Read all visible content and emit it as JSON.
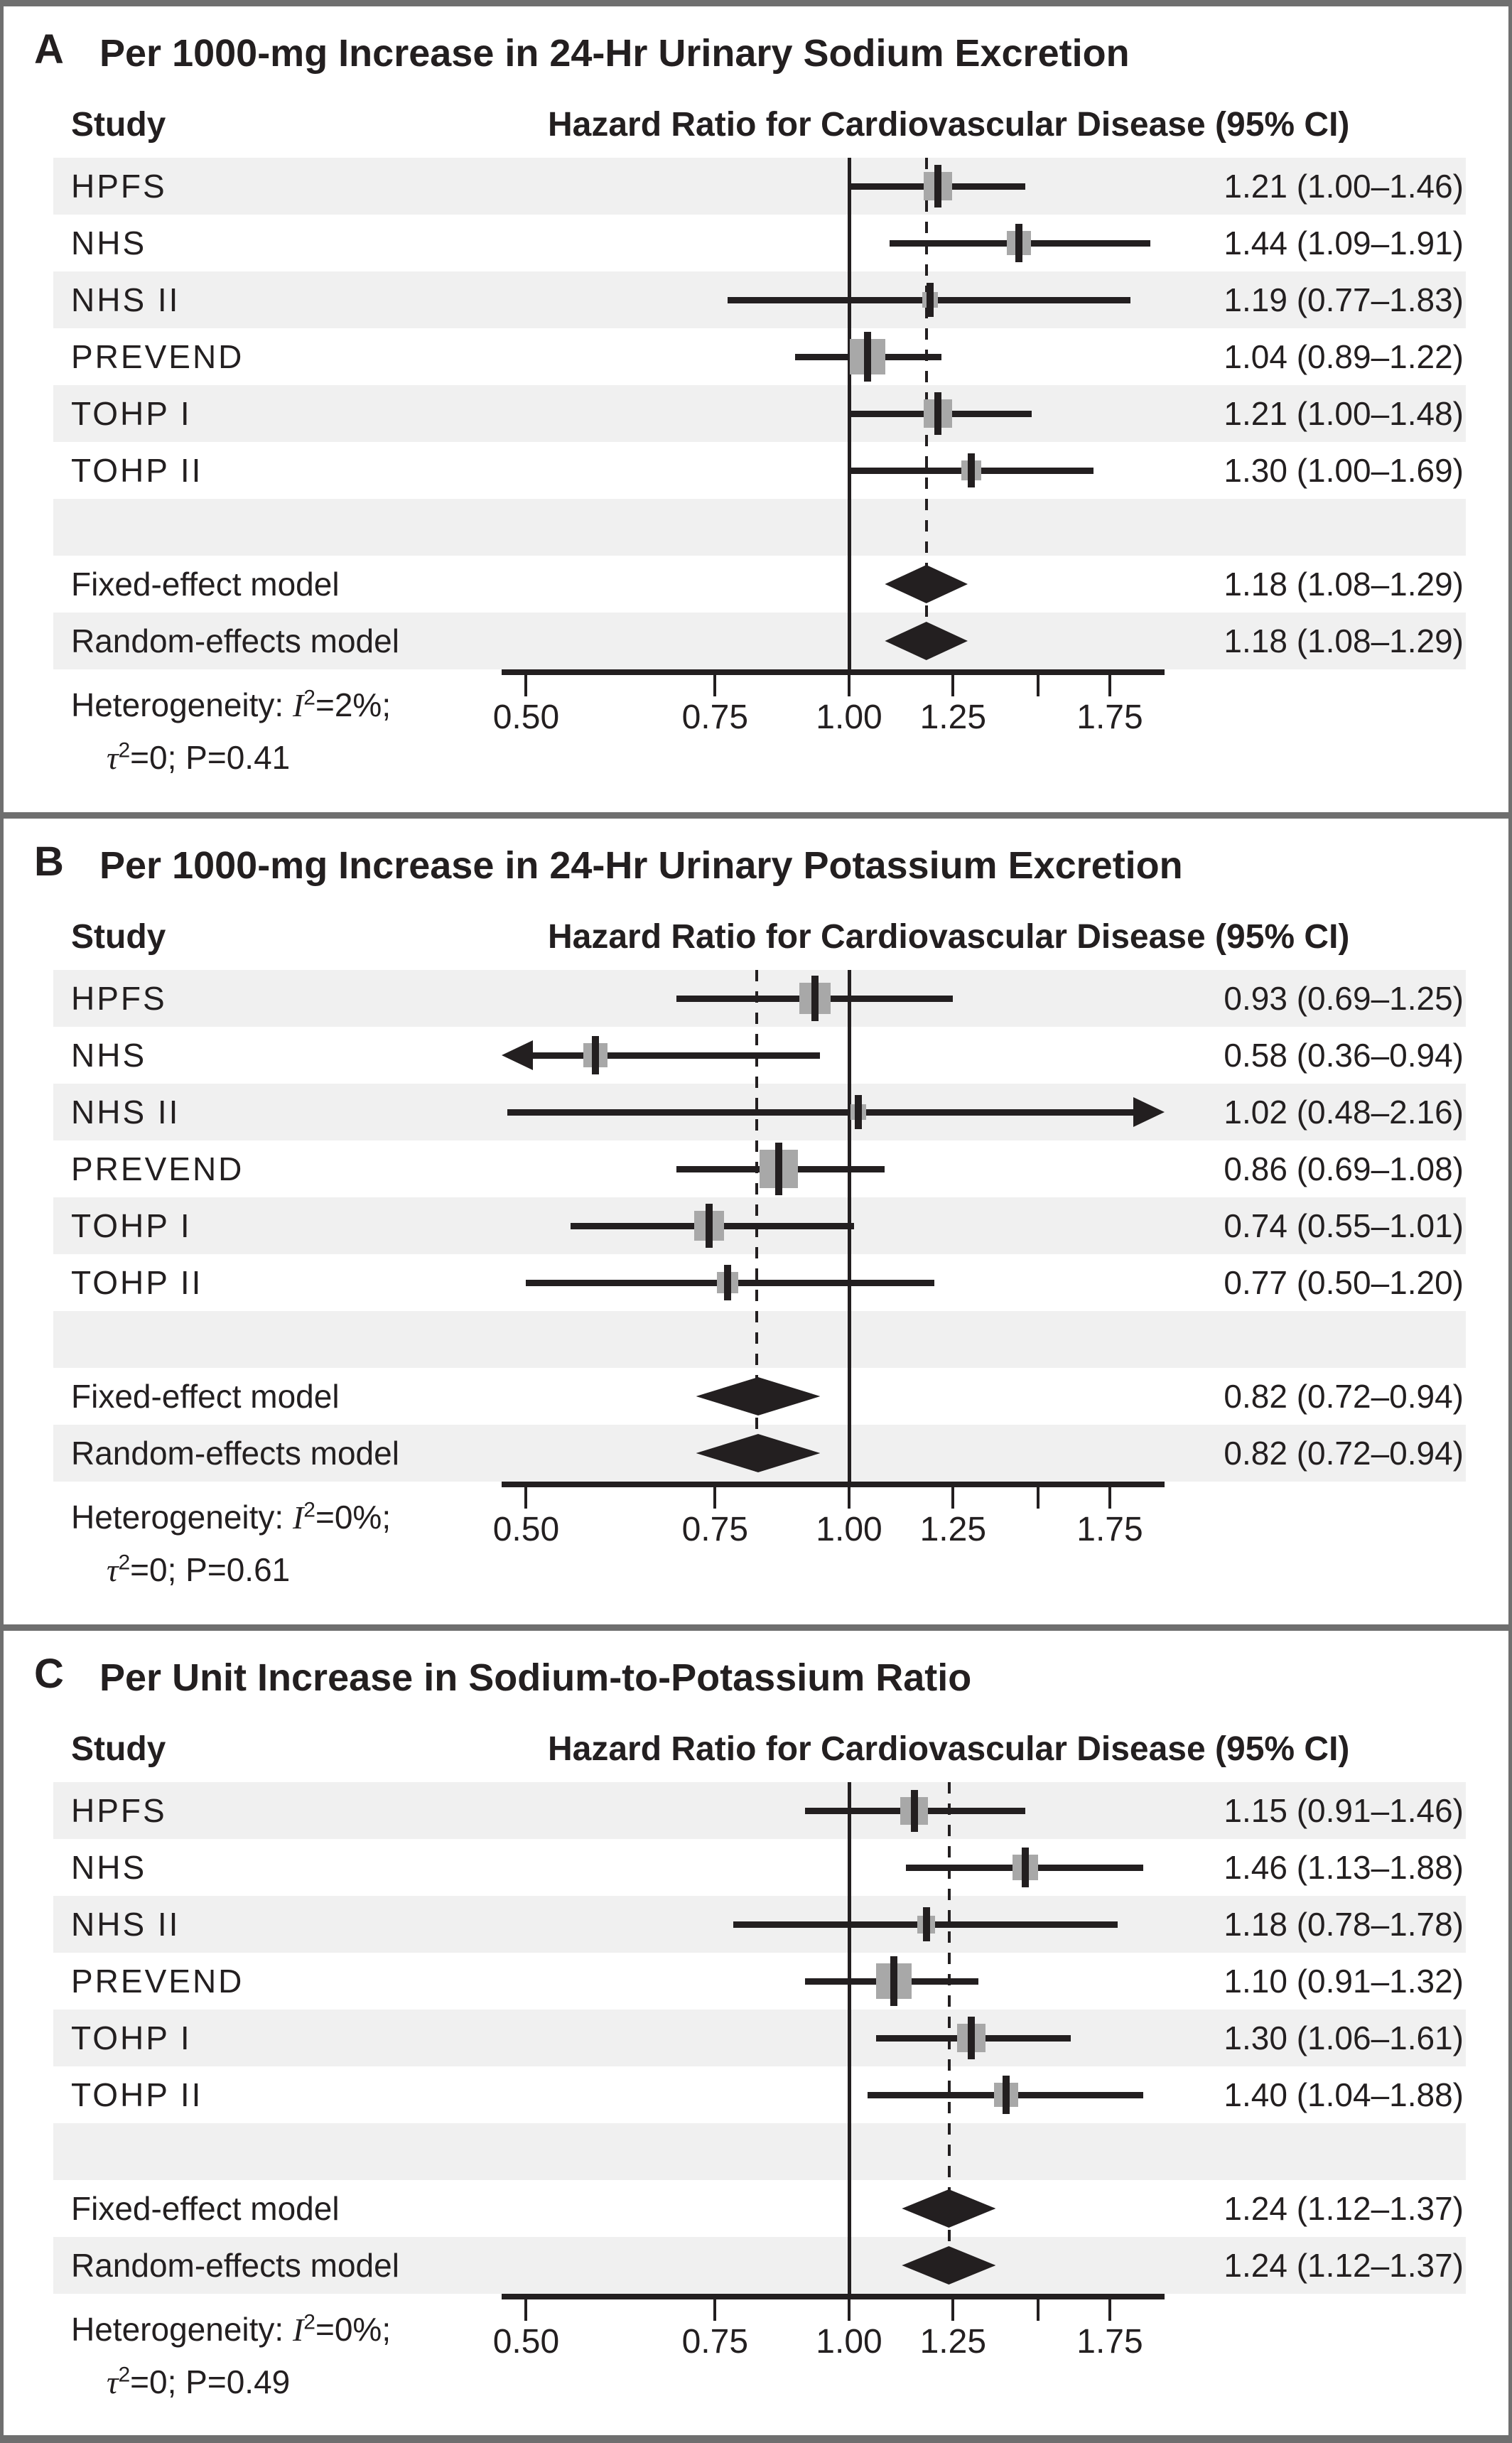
{
  "figure": {
    "ink_color": "#231f20",
    "row_band_color": "#f0f0f0",
    "marker_color": "#a8a8a8",
    "frame_color": "#6f6f6f"
  },
  "chart_data": [
    {
      "type": "forest",
      "panel_label": "A",
      "title": "Per 1000-mg Increase in 24-Hr Urinary Sodium Excretion",
      "col_headers": {
        "study": "Study",
        "effect": "Hazard Ratio for Cardiovascular Disease (95% CI)"
      },
      "x_scale": "log",
      "x_domain": [
        0.476,
        1.96
      ],
      "x_ticks": [
        {
          "value": 0.5,
          "label": "0.50"
        },
        {
          "value": 0.75,
          "label": "0.75"
        },
        {
          "value": 1.0,
          "label": "1.00"
        },
        {
          "value": 1.25,
          "label": "1.25"
        },
        {
          "value": 1.5,
          "label": ""
        },
        {
          "value": 1.75,
          "label": "1.75"
        }
      ],
      "null_line": 1.0,
      "pooled_line": 1.18,
      "studies": [
        {
          "label": "HPFS",
          "hr": 1.21,
          "ci_low": 1.0,
          "ci_high": 1.46,
          "ci_text": "1.21 (1.00–1.46)",
          "marker_size": 40
        },
        {
          "label": "NHS",
          "hr": 1.44,
          "ci_low": 1.09,
          "ci_high": 1.91,
          "ci_text": "1.44 (1.09–1.91)",
          "marker_size": 34
        },
        {
          "label": "NHS II",
          "hr": 1.19,
          "ci_low": 0.77,
          "ci_high": 1.83,
          "ci_text": "1.19 (0.77–1.83)",
          "marker_size": 22
        },
        {
          "label": "PREVEND",
          "hr": 1.04,
          "ci_low": 0.89,
          "ci_high": 1.22,
          "ci_text": "1.04 (0.89–1.22)",
          "marker_size": 50
        },
        {
          "label": "TOHP I",
          "hr": 1.21,
          "ci_low": 1.0,
          "ci_high": 1.48,
          "ci_text": "1.21 (1.00–1.48)",
          "marker_size": 40
        },
        {
          "label": "TOHP II",
          "hr": 1.3,
          "ci_low": 1.0,
          "ci_high": 1.69,
          "ci_text": "1.30 (1.00–1.69)",
          "marker_size": 28
        }
      ],
      "models": [
        {
          "label": "Fixed-effect model",
          "hr": 1.18,
          "ci_low": 1.08,
          "ci_high": 1.29,
          "ci_text": "1.18 (1.08–1.29)"
        },
        {
          "label": "Random-effects model",
          "hr": 1.18,
          "ci_low": 1.08,
          "ci_high": 1.29,
          "ci_text": "1.18 (1.08–1.29)"
        }
      ],
      "heterogeneity": {
        "prefix": "Heterogeneity: ",
        "i_var": "I",
        "i_sup": "2",
        "i_eq": "=2%;",
        "tau_var": "τ",
        "tau_sup": "2",
        "tau_eq": "=0; P=0.41"
      }
    },
    {
      "type": "forest",
      "panel_label": "B",
      "title": "Per 1000-mg Increase in 24-Hr Urinary Potassium Excretion",
      "col_headers": {
        "study": "Study",
        "effect": "Hazard Ratio for Cardiovascular Disease (95% CI)"
      },
      "x_scale": "log",
      "x_domain": [
        0.476,
        1.96
      ],
      "x_ticks": [
        {
          "value": 0.5,
          "label": "0.50"
        },
        {
          "value": 0.75,
          "label": "0.75"
        },
        {
          "value": 1.0,
          "label": "1.00"
        },
        {
          "value": 1.25,
          "label": "1.25"
        },
        {
          "value": 1.5,
          "label": ""
        },
        {
          "value": 1.75,
          "label": "1.75"
        }
      ],
      "null_line": 1.0,
      "pooled_line": 0.82,
      "studies": [
        {
          "label": "HPFS",
          "hr": 0.93,
          "ci_low": 0.69,
          "ci_high": 1.25,
          "ci_text": "0.93 (0.69–1.25)",
          "marker_size": 44
        },
        {
          "label": "NHS",
          "hr": 0.58,
          "ci_low": 0.36,
          "ci_high": 0.94,
          "ci_text": "0.58 (0.36–0.94)",
          "marker_size": 34
        },
        {
          "label": "NHS II",
          "hr": 1.02,
          "ci_low": 0.48,
          "ci_high": 2.16,
          "ci_text": "1.02 (0.48–2.16)",
          "marker_size": 22
        },
        {
          "label": "PREVEND",
          "hr": 0.86,
          "ci_low": 0.69,
          "ci_high": 1.08,
          "ci_text": "0.86 (0.69–1.08)",
          "marker_size": 54
        },
        {
          "label": "TOHP I",
          "hr": 0.74,
          "ci_low": 0.55,
          "ci_high": 1.01,
          "ci_text": "0.74 (0.55–1.01)",
          "marker_size": 42
        },
        {
          "label": "TOHP II",
          "hr": 0.77,
          "ci_low": 0.5,
          "ci_high": 1.2,
          "ci_text": "0.77 (0.50–1.20)",
          "marker_size": 30
        }
      ],
      "models": [
        {
          "label": "Fixed-effect model",
          "hr": 0.82,
          "ci_low": 0.72,
          "ci_high": 0.94,
          "ci_text": "0.82 (0.72–0.94)"
        },
        {
          "label": "Random-effects model",
          "hr": 0.82,
          "ci_low": 0.72,
          "ci_high": 0.94,
          "ci_text": "0.82 (0.72–0.94)"
        }
      ],
      "heterogeneity": {
        "prefix": "Heterogeneity: ",
        "i_var": "I",
        "i_sup": "2",
        "i_eq": "=0%;",
        "tau_var": "τ",
        "tau_sup": "2",
        "tau_eq": "=0; P=0.61"
      }
    },
    {
      "type": "forest",
      "panel_label": "C",
      "title": "Per Unit Increase in Sodium-to-Potassium Ratio",
      "col_headers": {
        "study": "Study",
        "effect": "Hazard Ratio for Cardiovascular Disease (95% CI)"
      },
      "x_scale": "log",
      "x_domain": [
        0.476,
        1.96
      ],
      "x_ticks": [
        {
          "value": 0.5,
          "label": "0.50"
        },
        {
          "value": 0.75,
          "label": "0.75"
        },
        {
          "value": 1.0,
          "label": "1.00"
        },
        {
          "value": 1.25,
          "label": "1.25"
        },
        {
          "value": 1.5,
          "label": ""
        },
        {
          "value": 1.75,
          "label": "1.75"
        }
      ],
      "null_line": 1.0,
      "pooled_line": 1.24,
      "studies": [
        {
          "label": "HPFS",
          "hr": 1.15,
          "ci_low": 0.91,
          "ci_high": 1.46,
          "ci_text": "1.15 (0.91–1.46)",
          "marker_size": 39
        },
        {
          "label": "NHS",
          "hr": 1.46,
          "ci_low": 1.13,
          "ci_high": 1.88,
          "ci_text": "1.46 (1.13–1.88)",
          "marker_size": 36
        },
        {
          "label": "NHS II",
          "hr": 1.18,
          "ci_low": 0.78,
          "ci_high": 1.78,
          "ci_text": "1.18 (0.78–1.78)",
          "marker_size": 25
        },
        {
          "label": "PREVEND",
          "hr": 1.1,
          "ci_low": 0.91,
          "ci_high": 1.32,
          "ci_text": "1.10 (0.91–1.32)",
          "marker_size": 50
        },
        {
          "label": "TOHP I",
          "hr": 1.3,
          "ci_low": 1.06,
          "ci_high": 1.61,
          "ci_text": "1.30 (1.06–1.61)",
          "marker_size": 40
        },
        {
          "label": "TOHP II",
          "hr": 1.4,
          "ci_low": 1.04,
          "ci_high": 1.88,
          "ci_text": "1.40 (1.04–1.88)",
          "marker_size": 34
        }
      ],
      "models": [
        {
          "label": "Fixed-effect model",
          "hr": 1.24,
          "ci_low": 1.12,
          "ci_high": 1.37,
          "ci_text": "1.24 (1.12–1.37)"
        },
        {
          "label": "Random-effects model",
          "hr": 1.24,
          "ci_low": 1.12,
          "ci_high": 1.37,
          "ci_text": "1.24 (1.12–1.37)"
        }
      ],
      "heterogeneity": {
        "prefix": "Heterogeneity: ",
        "i_var": "I",
        "i_sup": "2",
        "i_eq": "=0%;",
        "tau_var": "τ",
        "tau_sup": "2",
        "tau_eq": "=0; P=0.49"
      }
    }
  ]
}
